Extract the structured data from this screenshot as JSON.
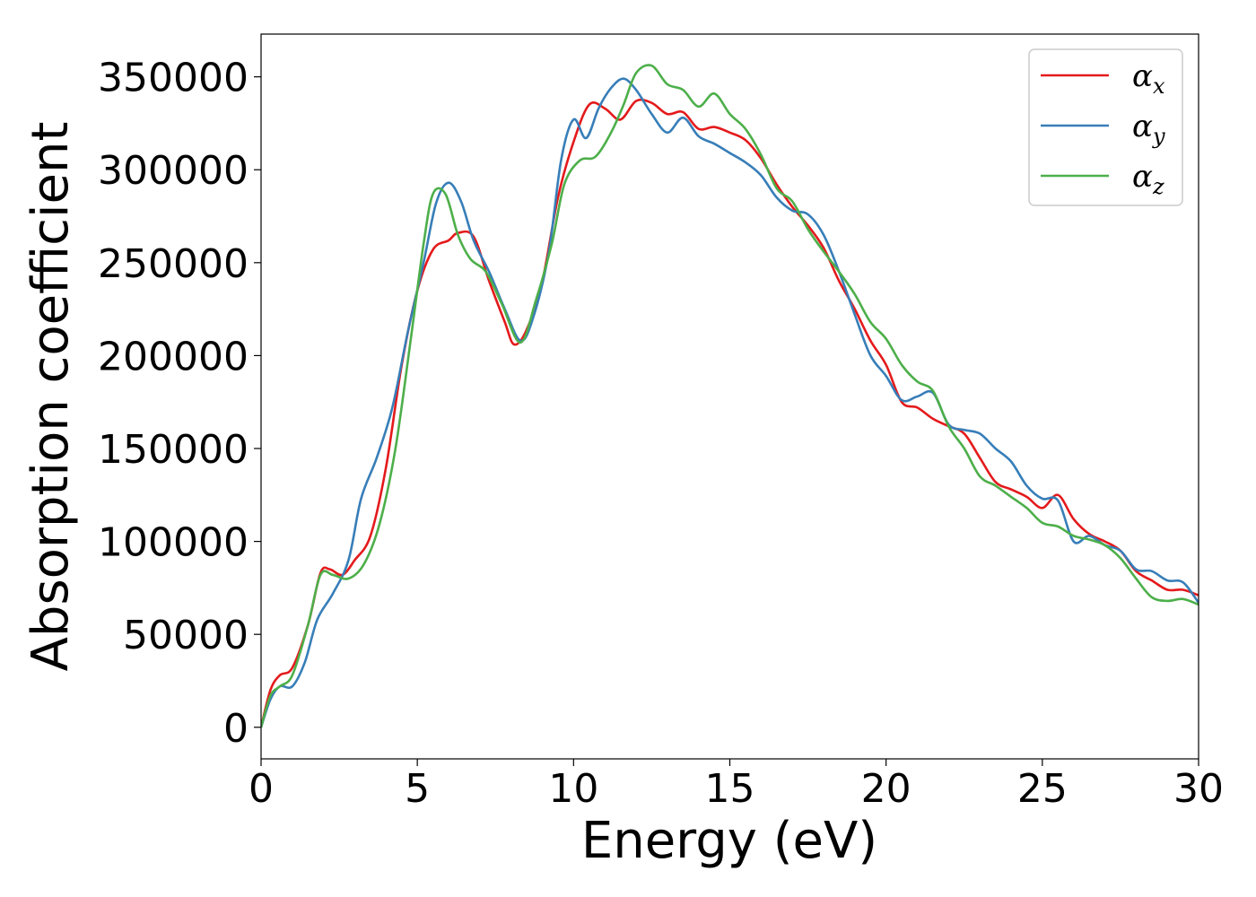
{
  "chart_data": {
    "type": "line",
    "xlabel": "Energy (eV)",
    "ylabel": "Absorption coefficient",
    "xlim": [
      0,
      30
    ],
    "ylim": [
      -17000,
      373000
    ],
    "xticks": [
      0,
      5,
      10,
      15,
      20,
      25,
      30
    ],
    "yticks": [
      0,
      50000,
      100000,
      150000,
      200000,
      250000,
      300000,
      350000
    ],
    "xtick_labels": [
      "0",
      "5",
      "10",
      "15",
      "20",
      "25",
      "30"
    ],
    "ytick_labels": [
      "0",
      "50000",
      "100000",
      "150000",
      "200000",
      "250000",
      "300000",
      "350000"
    ],
    "grid": false,
    "legend_position": "top-right",
    "series": [
      {
        "name": "α_x",
        "label_main": "α",
        "label_sub": "x",
        "color": "#e41a1c",
        "points": [
          [
            0,
            0
          ],
          [
            0.3,
            20000
          ],
          [
            0.6,
            28000
          ],
          [
            1.0,
            32000
          ],
          [
            1.5,
            55000
          ],
          [
            1.9,
            83000
          ],
          [
            2.2,
            85000
          ],
          [
            2.6,
            82000
          ],
          [
            3.0,
            90000
          ],
          [
            3.5,
            103000
          ],
          [
            4.0,
            140000
          ],
          [
            4.5,
            195000
          ],
          [
            5.0,
            235000
          ],
          [
            5.5,
            257000
          ],
          [
            6.0,
            262000
          ],
          [
            6.3,
            266000
          ],
          [
            6.8,
            264000
          ],
          [
            7.3,
            240000
          ],
          [
            7.8,
            218000
          ],
          [
            8.1,
            206000
          ],
          [
            8.5,
            214000
          ],
          [
            9.0,
            240000
          ],
          [
            9.5,
            285000
          ],
          [
            10.0,
            315000
          ],
          [
            10.5,
            335000
          ],
          [
            11.0,
            333000
          ],
          [
            11.5,
            327000
          ],
          [
            12.0,
            337000
          ],
          [
            12.5,
            336000
          ],
          [
            13.0,
            330000
          ],
          [
            13.5,
            331000
          ],
          [
            14.0,
            322000
          ],
          [
            14.5,
            323000
          ],
          [
            15.0,
            320000
          ],
          [
            15.5,
            316000
          ],
          [
            16.0,
            306000
          ],
          [
            16.5,
            292000
          ],
          [
            17.0,
            280000
          ],
          [
            17.5,
            270000
          ],
          [
            18.0,
            258000
          ],
          [
            18.5,
            240000
          ],
          [
            19.0,
            225000
          ],
          [
            19.5,
            208000
          ],
          [
            20.0,
            195000
          ],
          [
            20.5,
            175000
          ],
          [
            21.0,
            172000
          ],
          [
            21.5,
            166000
          ],
          [
            22.0,
            162000
          ],
          [
            22.5,
            158000
          ],
          [
            23.0,
            145000
          ],
          [
            23.5,
            132000
          ],
          [
            24.0,
            128000
          ],
          [
            24.5,
            124000
          ],
          [
            25.0,
            118000
          ],
          [
            25.5,
            125000
          ],
          [
            26.0,
            112000
          ],
          [
            26.5,
            104000
          ],
          [
            27.0,
            100000
          ],
          [
            27.5,
            95000
          ],
          [
            28.0,
            84000
          ],
          [
            28.5,
            79000
          ],
          [
            29.0,
            74000
          ],
          [
            29.5,
            74000
          ],
          [
            30.0,
            71000
          ]
        ]
      },
      {
        "name": "α_y",
        "label_main": "α",
        "label_sub": "y",
        "color": "#377eb8",
        "points": [
          [
            0,
            0
          ],
          [
            0.3,
            15000
          ],
          [
            0.6,
            22000
          ],
          [
            1.0,
            22000
          ],
          [
            1.4,
            35000
          ],
          [
            1.8,
            58000
          ],
          [
            2.3,
            72000
          ],
          [
            2.8,
            90000
          ],
          [
            3.2,
            123000
          ],
          [
            3.7,
            145000
          ],
          [
            4.2,
            172000
          ],
          [
            4.7,
            213000
          ],
          [
            5.2,
            250000
          ],
          [
            5.6,
            282000
          ],
          [
            6.0,
            293000
          ],
          [
            6.4,
            283000
          ],
          [
            6.8,
            262000
          ],
          [
            7.3,
            245000
          ],
          [
            7.8,
            225000
          ],
          [
            8.3,
            208000
          ],
          [
            8.7,
            220000
          ],
          [
            9.2,
            255000
          ],
          [
            9.6,
            305000
          ],
          [
            10.0,
            327000
          ],
          [
            10.4,
            317000
          ],
          [
            10.8,
            333000
          ],
          [
            11.2,
            344000
          ],
          [
            11.6,
            349000
          ],
          [
            12.0,
            343000
          ],
          [
            12.5,
            330000
          ],
          [
            13.0,
            320000
          ],
          [
            13.5,
            328000
          ],
          [
            14.0,
            318000
          ],
          [
            14.5,
            314000
          ],
          [
            15.0,
            309000
          ],
          [
            15.5,
            304000
          ],
          [
            16.0,
            297000
          ],
          [
            16.5,
            285000
          ],
          [
            17.0,
            278000
          ],
          [
            17.5,
            276000
          ],
          [
            18.0,
            265000
          ],
          [
            18.5,
            245000
          ],
          [
            19.0,
            222000
          ],
          [
            19.5,
            200000
          ],
          [
            20.0,
            189000
          ],
          [
            20.5,
            176000
          ],
          [
            21.0,
            178000
          ],
          [
            21.5,
            180000
          ],
          [
            22.0,
            163000
          ],
          [
            22.5,
            160000
          ],
          [
            23.0,
            158000
          ],
          [
            23.5,
            150000
          ],
          [
            24.0,
            143000
          ],
          [
            24.5,
            130000
          ],
          [
            25.0,
            123000
          ],
          [
            25.5,
            122000
          ],
          [
            26.0,
            100000
          ],
          [
            26.5,
            103000
          ],
          [
            27.0,
            98000
          ],
          [
            27.5,
            95000
          ],
          [
            28.0,
            85000
          ],
          [
            28.5,
            84000
          ],
          [
            29.0,
            79000
          ],
          [
            29.5,
            78000
          ],
          [
            30.0,
            67000
          ]
        ]
      },
      {
        "name": "α_z",
        "label_main": "α",
        "label_sub": "z",
        "color": "#4daf4a",
        "points": [
          [
            0,
            0
          ],
          [
            0.3,
            17000
          ],
          [
            0.6,
            22000
          ],
          [
            1.0,
            28000
          ],
          [
            1.5,
            55000
          ],
          [
            1.9,
            82000
          ],
          [
            2.3,
            82000
          ],
          [
            2.8,
            80000
          ],
          [
            3.3,
            88000
          ],
          [
            3.8,
            110000
          ],
          [
            4.3,
            150000
          ],
          [
            4.8,
            210000
          ],
          [
            5.2,
            260000
          ],
          [
            5.5,
            287000
          ],
          [
            5.9,
            287000
          ],
          [
            6.3,
            265000
          ],
          [
            6.7,
            252000
          ],
          [
            7.2,
            245000
          ],
          [
            7.7,
            228000
          ],
          [
            8.3,
            207000
          ],
          [
            8.8,
            230000
          ],
          [
            9.3,
            260000
          ],
          [
            9.7,
            292000
          ],
          [
            10.2,
            305000
          ],
          [
            10.7,
            307000
          ],
          [
            11.2,
            320000
          ],
          [
            11.6,
            335000
          ],
          [
            12.0,
            352000
          ],
          [
            12.5,
            356000
          ],
          [
            13.0,
            346000
          ],
          [
            13.5,
            343000
          ],
          [
            14.0,
            334000
          ],
          [
            14.5,
            341000
          ],
          [
            15.0,
            330000
          ],
          [
            15.5,
            322000
          ],
          [
            16.0,
            308000
          ],
          [
            16.5,
            290000
          ],
          [
            17.0,
            283000
          ],
          [
            17.5,
            268000
          ],
          [
            18.0,
            256000
          ],
          [
            18.5,
            245000
          ],
          [
            19.0,
            233000
          ],
          [
            19.5,
            218000
          ],
          [
            20.0,
            209000
          ],
          [
            20.5,
            195000
          ],
          [
            21.0,
            186000
          ],
          [
            21.5,
            181000
          ],
          [
            22.0,
            162000
          ],
          [
            22.5,
            150000
          ],
          [
            23.0,
            135000
          ],
          [
            23.5,
            130000
          ],
          [
            24.0,
            124000
          ],
          [
            24.5,
            118000
          ],
          [
            25.0,
            110000
          ],
          [
            25.5,
            108000
          ],
          [
            26.0,
            103000
          ],
          [
            26.5,
            101000
          ],
          [
            27.0,
            98000
          ],
          [
            27.5,
            91000
          ],
          [
            28.0,
            80000
          ],
          [
            28.5,
            70000
          ],
          [
            29.0,
            68000
          ],
          [
            29.5,
            69000
          ],
          [
            30.0,
            66000
          ]
        ]
      }
    ]
  }
}
